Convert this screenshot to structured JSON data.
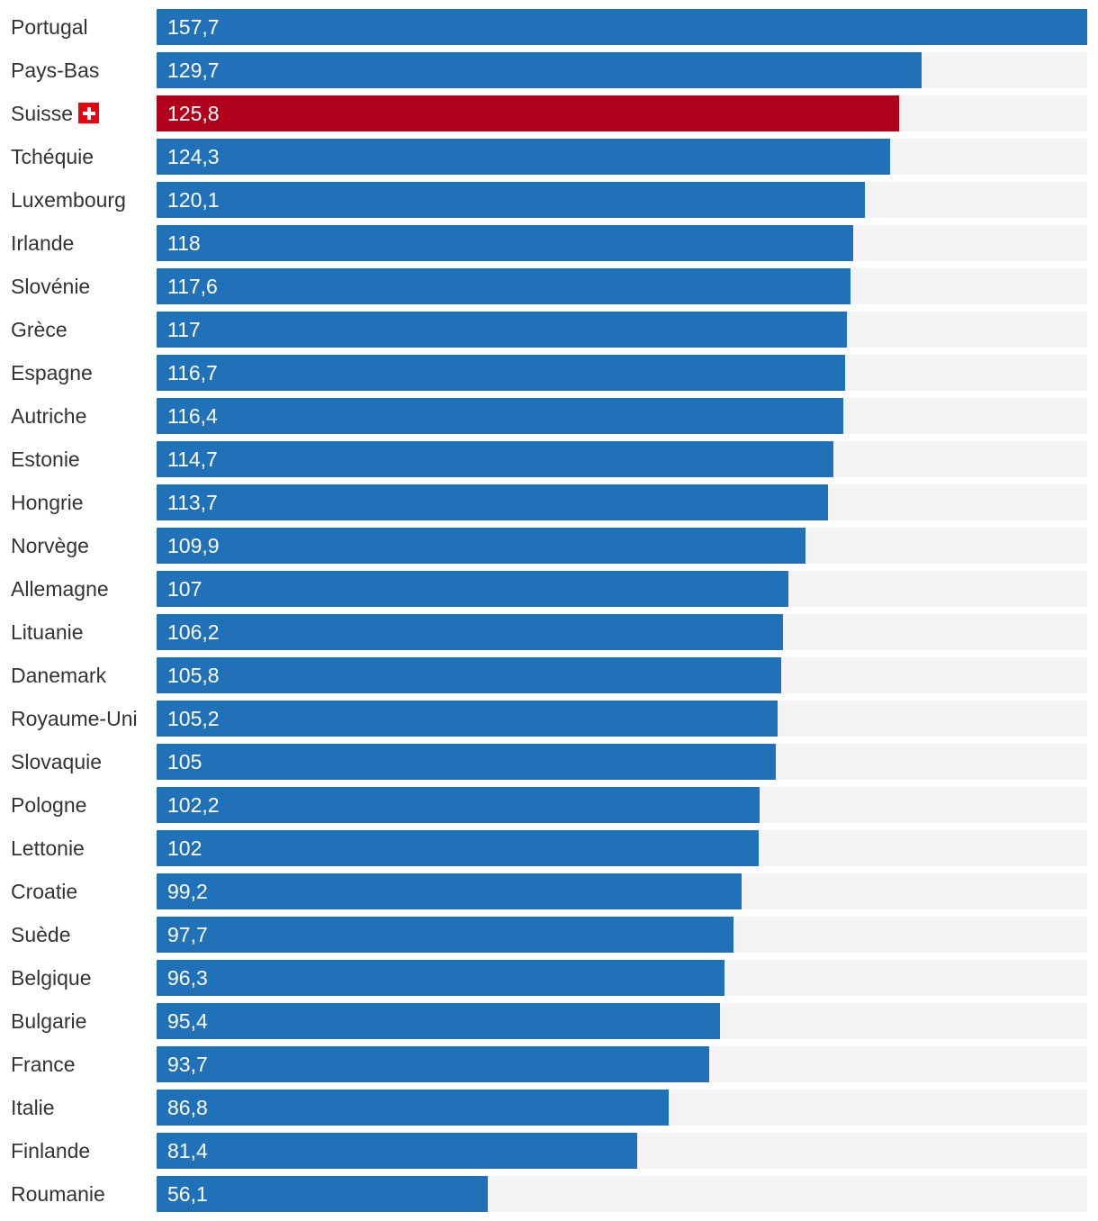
{
  "chart_data": {
    "type": "bar",
    "orientation": "horizontal",
    "title": "",
    "xlabel": "",
    "ylabel": "",
    "xlim": [
      0,
      157.7
    ],
    "grid": false,
    "colors": {
      "default": "#2171b9",
      "highlight": "#b1001c",
      "track": "#f3f3f3"
    },
    "highlight_category": "Suisse",
    "categories": [
      "Portugal",
      "Pays-Bas",
      "Suisse",
      "Tchéquie",
      "Luxembourg",
      "Irlande",
      "Slovénie",
      "Grèce",
      "Espagne",
      "Autriche",
      "Estonie",
      "Hongrie",
      "Norvège",
      "Allemagne",
      "Lituanie",
      "Danemark",
      "Royaume-Uni",
      "Slovaquie",
      "Pologne",
      "Lettonie",
      "Croatie",
      "Suède",
      "Belgique",
      "Bulgarie",
      "France",
      "Italie",
      "Finlande",
      "Roumanie"
    ],
    "values": [
      157.7,
      129.7,
      125.8,
      124.3,
      120.1,
      118,
      117.6,
      117,
      116.7,
      116.4,
      114.7,
      113.7,
      109.9,
      107,
      106.2,
      105.8,
      105.2,
      105,
      102.2,
      102,
      99.2,
      97.7,
      96.3,
      95.4,
      93.7,
      86.8,
      81.4,
      56.1
    ],
    "value_labels": [
      "157,7",
      "129,7",
      "125,8",
      "124,3",
      "120,1",
      "118",
      "117,6",
      "117",
      "116,7",
      "116,4",
      "114,7",
      "113,7",
      "109,9",
      "107",
      "106,2",
      "105,8",
      "105,2",
      "105",
      "102,2",
      "102",
      "99,2",
      "97,7",
      "96,3",
      "95,4",
      "93,7",
      "86,8",
      "81,4",
      "56,1"
    ],
    "icons": {
      "Suisse": "swiss-flag-icon"
    }
  }
}
